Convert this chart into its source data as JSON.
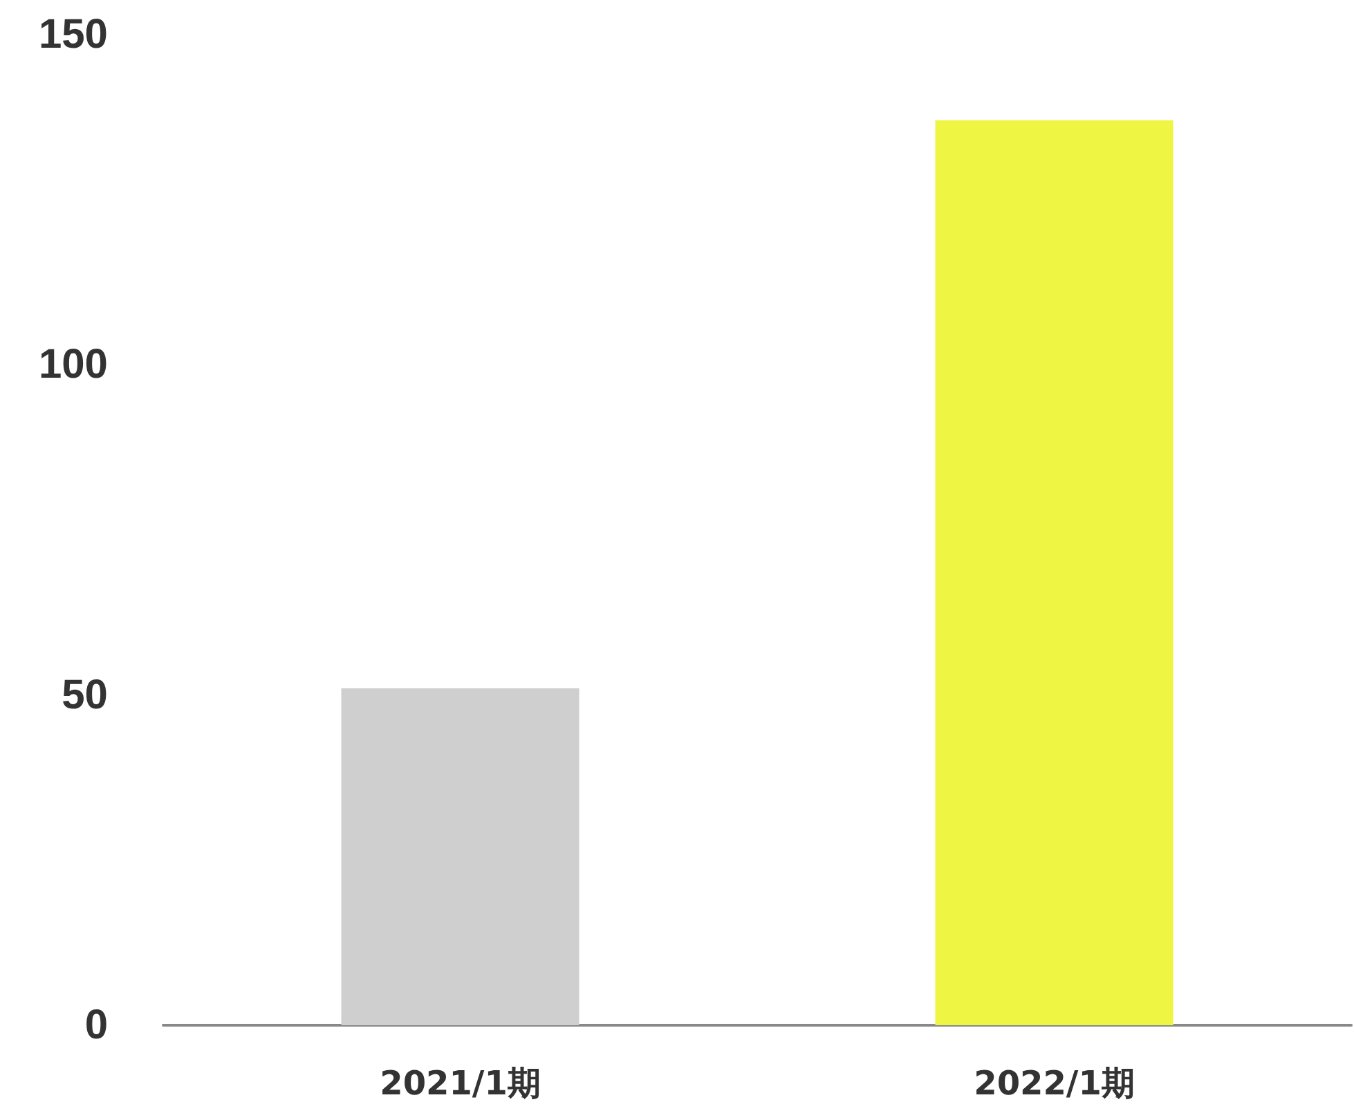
{
  "chart_data": {
    "type": "bar",
    "categories": [
      "2021/1期",
      "2022/1期"
    ],
    "values": [
      51,
      137
    ],
    "colors": [
      "#cfcfcf",
      "#eef542"
    ],
    "ylim": [
      0,
      150
    ],
    "yticks": [
      0,
      50,
      100,
      150
    ],
    "grid": false
  }
}
